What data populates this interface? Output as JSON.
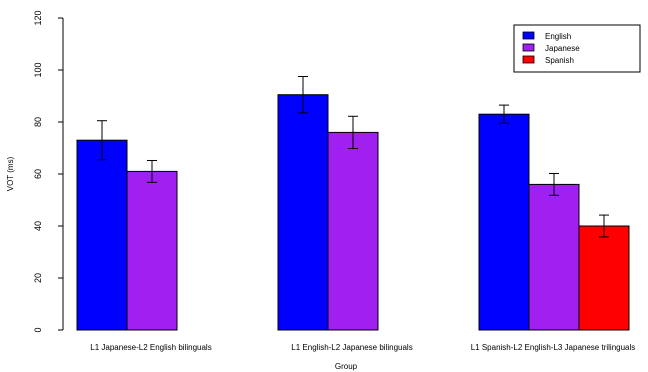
{
  "chart_data": {
    "type": "bar",
    "title": "",
    "xlabel": "Group",
    "ylabel": "VOT (ms)",
    "ylim": [
      0,
      120
    ],
    "yticks": [
      0,
      20,
      40,
      60,
      80,
      100,
      120
    ],
    "grid": false,
    "legend_position": "top-right",
    "categories": [
      "L1 Japanese-L2 English bilinguals",
      "L1 English-L2 Japanese bilinguals",
      "L1 Spanish-L2 English-L3 Japanese trilinguals"
    ],
    "series": [
      {
        "name": "English",
        "color": "#0000ff",
        "values": [
          73,
          90.5,
          83
        ],
        "error": [
          7.5,
          7,
          3.5
        ]
      },
      {
        "name": "Japanese",
        "color": "#a020f0",
        "values": [
          61,
          76,
          56
        ],
        "error": [
          4.2,
          6.2,
          4.2
        ]
      },
      {
        "name": "Spanish",
        "color": "#ff0000",
        "values": [
          null,
          null,
          40
        ],
        "error": [
          null,
          null,
          4.2
        ]
      }
    ]
  }
}
